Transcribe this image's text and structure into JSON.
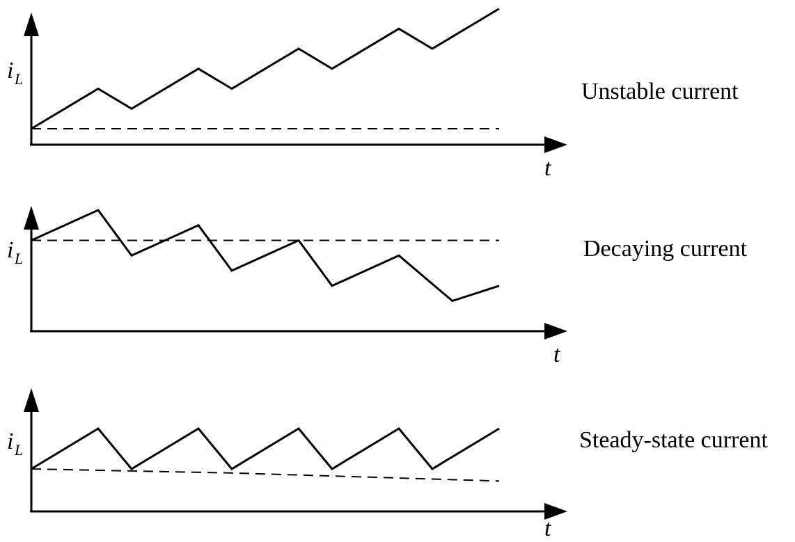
{
  "panels": [
    {
      "label": "Unstable current",
      "y_symbol": "i",
      "y_subscript": "L",
      "x_symbol": "t",
      "waveform": [
        [
          0,
          0
        ],
        [
          1,
          2
        ],
        [
          1.5,
          1
        ],
        [
          2.5,
          3
        ],
        [
          3,
          2
        ],
        [
          4,
          4
        ],
        [
          4.5,
          3
        ],
        [
          5.5,
          5
        ],
        [
          6,
          4
        ],
        [
          7,
          6
        ]
      ],
      "reference": [
        [
          0,
          0
        ],
        [
          7,
          0
        ]
      ]
    },
    {
      "label": "Decaying current",
      "y_symbol": "i",
      "y_subscript": "L",
      "x_symbol": "t",
      "waveform": [
        [
          0,
          6
        ],
        [
          1,
          8
        ],
        [
          1.5,
          5
        ],
        [
          2.5,
          7
        ],
        [
          3,
          4
        ],
        [
          4,
          6
        ],
        [
          4.5,
          3
        ],
        [
          5.5,
          5
        ],
        [
          6.3,
          2
        ],
        [
          7,
          3
        ]
      ],
      "reference": [
        [
          0,
          6
        ],
        [
          7,
          6
        ]
      ]
    },
    {
      "label": "Steady-state current",
      "y_symbol": "i",
      "y_subscript": "L",
      "x_symbol": "t",
      "waveform": [
        [
          0,
          2
        ],
        [
          1,
          4
        ],
        [
          1.5,
          2
        ],
        [
          2.5,
          4
        ],
        [
          3,
          2
        ],
        [
          4,
          4
        ],
        [
          4.5,
          2
        ],
        [
          5.5,
          4
        ],
        [
          6,
          2
        ],
        [
          7,
          4
        ]
      ],
      "reference": [
        [
          0,
          2
        ],
        [
          3,
          1.8
        ],
        [
          6,
          1.5
        ],
        [
          7,
          1.4
        ]
      ]
    }
  ]
}
